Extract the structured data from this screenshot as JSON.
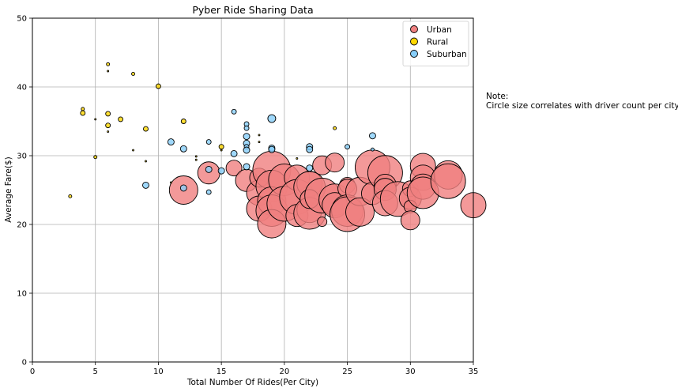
{
  "chart_data": {
    "type": "scatter",
    "title": "Pyber Ride Sharing Data",
    "xlabel": "Total Number Of Rides(Per City)",
    "ylabel": "Average Fare($)",
    "xlim": [
      0,
      35
    ],
    "ylim": [
      0,
      50
    ],
    "xticks": [
      0,
      5,
      10,
      15,
      20,
      25,
      30,
      35
    ],
    "yticks": [
      0,
      10,
      20,
      30,
      40,
      50
    ],
    "grid": true,
    "legend": "top-right",
    "series": [
      {
        "name": "Urban",
        "color": "#f08080",
        "points": [
          {
            "x": 12,
            "y": 25.0,
            "size": 9
          },
          {
            "x": 14,
            "y": 27.5,
            "size": 7
          },
          {
            "x": 16,
            "y": 28.2,
            "size": 5
          },
          {
            "x": 17,
            "y": 26.4,
            "size": 7
          },
          {
            "x": 18,
            "y": 24.6,
            "size": 8
          },
          {
            "x": 18,
            "y": 22.3,
            "size": 8
          },
          {
            "x": 18,
            "y": 26.8,
            "size": 6
          },
          {
            "x": 19,
            "y": 27.9,
            "size": 12
          },
          {
            "x": 19,
            "y": 25.6,
            "size": 10
          },
          {
            "x": 19,
            "y": 23.4,
            "size": 9
          },
          {
            "x": 19,
            "y": 22.0,
            "size": 10
          },
          {
            "x": 19,
            "y": 20.1,
            "size": 9
          },
          {
            "x": 20,
            "y": 26.5,
            "size": 10
          },
          {
            "x": 20,
            "y": 23.0,
            "size": 11
          },
          {
            "x": 21,
            "y": 26.8,
            "size": 8
          },
          {
            "x": 21,
            "y": 24.0,
            "size": 11
          },
          {
            "x": 21,
            "y": 21.3,
            "size": 7
          },
          {
            "x": 22,
            "y": 25.9,
            "size": 8
          },
          {
            "x": 22,
            "y": 25.4,
            "size": 10
          },
          {
            "x": 22,
            "y": 22.1,
            "size": 8
          },
          {
            "x": 22,
            "y": 21.6,
            "size": 10
          },
          {
            "x": 22,
            "y": 23.7,
            "size": 6
          },
          {
            "x": 23,
            "y": 28.6,
            "size": 6
          },
          {
            "x": 23,
            "y": 24.2,
            "size": 11
          },
          {
            "x": 23,
            "y": 20.4,
            "size": 3
          },
          {
            "x": 24,
            "y": 29.0,
            "size": 6
          },
          {
            "x": 24,
            "y": 23.6,
            "size": 10
          },
          {
            "x": 24,
            "y": 22.8,
            "size": 8
          },
          {
            "x": 25,
            "y": 25.7,
            "size": 5
          },
          {
            "x": 25,
            "y": 25.2,
            "size": 6
          },
          {
            "x": 25,
            "y": 22.0,
            "size": 10
          },
          {
            "x": 25,
            "y": 21.5,
            "size": 11
          },
          {
            "x": 26,
            "y": 24.8,
            "size": 9
          },
          {
            "x": 26,
            "y": 21.8,
            "size": 9
          },
          {
            "x": 27,
            "y": 28.3,
            "size": 11
          },
          {
            "x": 27,
            "y": 24.5,
            "size": 7
          },
          {
            "x": 28,
            "y": 27.5,
            "size": 11
          },
          {
            "x": 28,
            "y": 25.7,
            "size": 7
          },
          {
            "x": 28,
            "y": 25.1,
            "size": 7
          },
          {
            "x": 28,
            "y": 23.1,
            "size": 8
          },
          {
            "x": 29,
            "y": 23.7,
            "size": 11
          },
          {
            "x": 30,
            "y": 25.2,
            "size": 5
          },
          {
            "x": 30,
            "y": 23.8,
            "size": 7
          },
          {
            "x": 30,
            "y": 22.6,
            "size": 4
          },
          {
            "x": 30,
            "y": 20.6,
            "size": 6
          },
          {
            "x": 31,
            "y": 28.5,
            "size": 8
          },
          {
            "x": 31,
            "y": 26.8,
            "size": 8
          },
          {
            "x": 31,
            "y": 25.5,
            "size": 8
          },
          {
            "x": 31,
            "y": 24.6,
            "size": 10
          },
          {
            "x": 33,
            "y": 27.2,
            "size": 9
          },
          {
            "x": 33,
            "y": 26.3,
            "size": 11
          },
          {
            "x": 35,
            "y": 22.8,
            "size": 8
          }
        ]
      },
      {
        "name": "Rural",
        "color": "#ffd700",
        "points": [
          {
            "x": 3,
            "y": 24.1,
            "size": 1
          },
          {
            "x": 4,
            "y": 36.8,
            "size": 1
          },
          {
            "x": 4,
            "y": 36.2,
            "size": 1.5
          },
          {
            "x": 5,
            "y": 35.3,
            "size": 0.5
          },
          {
            "x": 5,
            "y": 29.8,
            "size": 1
          },
          {
            "x": 6,
            "y": 43.3,
            "size": 1
          },
          {
            "x": 6,
            "y": 42.3,
            "size": 0.5
          },
          {
            "x": 6,
            "y": 36.1,
            "size": 1.5
          },
          {
            "x": 6,
            "y": 34.4,
            "size": 1.5
          },
          {
            "x": 6,
            "y": 33.5,
            "size": 0.5
          },
          {
            "x": 7,
            "y": 35.3,
            "size": 1.5
          },
          {
            "x": 8,
            "y": 41.9,
            "size": 1
          },
          {
            "x": 8,
            "y": 30.8,
            "size": 0.5
          },
          {
            "x": 9,
            "y": 33.9,
            "size": 1.5
          },
          {
            "x": 9,
            "y": 29.2,
            "size": 0.5
          },
          {
            "x": 10,
            "y": 40.1,
            "size": 1.5
          },
          {
            "x": 11,
            "y": 26.1,
            "size": 0.5
          },
          {
            "x": 12,
            "y": 35.0,
            "size": 1.5
          },
          {
            "x": 13,
            "y": 29.9,
            "size": 0.5
          },
          {
            "x": 13,
            "y": 29.4,
            "size": 0.5
          },
          {
            "x": 15,
            "y": 31.3,
            "size": 1.5
          },
          {
            "x": 15,
            "y": 30.8,
            "size": 0.5
          },
          {
            "x": 18,
            "y": 33.0,
            "size": 0.5
          },
          {
            "x": 18,
            "y": 32.0,
            "size": 0.5
          },
          {
            "x": 21,
            "y": 29.6,
            "size": 0.5
          },
          {
            "x": 24,
            "y": 34.0,
            "size": 1
          }
        ]
      },
      {
        "name": "Suburban",
        "color": "#87cefa",
        "points": [
          {
            "x": 9,
            "y": 25.7,
            "size": 2
          },
          {
            "x": 11,
            "y": 32.0,
            "size": 2
          },
          {
            "x": 12,
            "y": 31.0,
            "size": 2
          },
          {
            "x": 12,
            "y": 25.3,
            "size": 2
          },
          {
            "x": 14,
            "y": 32.0,
            "size": 1.5
          },
          {
            "x": 14,
            "y": 28.0,
            "size": 2
          },
          {
            "x": 14,
            "y": 24.7,
            "size": 1.5
          },
          {
            "x": 15,
            "y": 27.8,
            "size": 2
          },
          {
            "x": 16,
            "y": 36.4,
            "size": 1.5
          },
          {
            "x": 16,
            "y": 30.3,
            "size": 2
          },
          {
            "x": 17,
            "y": 34.6,
            "size": 1.5
          },
          {
            "x": 17,
            "y": 34.0,
            "size": 1.5
          },
          {
            "x": 17,
            "y": 32.8,
            "size": 2
          },
          {
            "x": 17,
            "y": 31.8,
            "size": 2
          },
          {
            "x": 17,
            "y": 31.3,
            "size": 1.5
          },
          {
            "x": 17,
            "y": 30.8,
            "size": 2
          },
          {
            "x": 17,
            "y": 28.4,
            "size": 2
          },
          {
            "x": 19,
            "y": 35.4,
            "size": 2.5
          },
          {
            "x": 19,
            "y": 31.1,
            "size": 2
          },
          {
            "x": 19,
            "y": 30.9,
            "size": 2
          },
          {
            "x": 22,
            "y": 31.3,
            "size": 2
          },
          {
            "x": 22,
            "y": 30.9,
            "size": 2
          },
          {
            "x": 22,
            "y": 28.2,
            "size": 2
          },
          {
            "x": 25,
            "y": 31.3,
            "size": 1.5
          },
          {
            "x": 27,
            "y": 32.9,
            "size": 2
          },
          {
            "x": 27,
            "y": 30.9,
            "size": 1
          }
        ]
      }
    ]
  },
  "note": {
    "line1": "Note:",
    "line2": "Circle size correlates with driver count per city."
  }
}
